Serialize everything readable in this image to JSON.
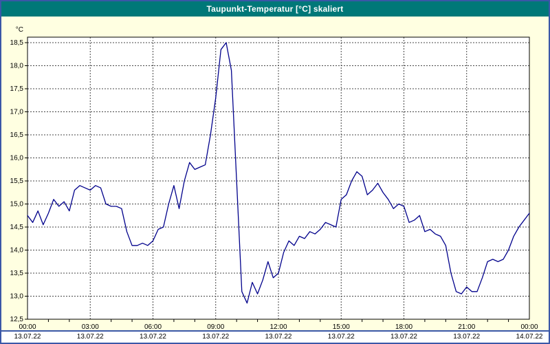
{
  "window": {
    "title": "Taupunkt-Temperatur [°C] skaliert"
  },
  "chart_data": {
    "type": "line",
    "title": "Taupunkt-Temperatur [°C] skaliert",
    "unit_label": "°C",
    "ylim": [
      12.5,
      18.5
    ],
    "ytick_step": 0.5,
    "ytick_values": [
      12.5,
      13.0,
      13.5,
      14.0,
      14.5,
      15.0,
      15.5,
      16.0,
      16.5,
      17.0,
      17.5,
      18.0,
      18.5
    ],
    "ytick_labels": [
      "12,5",
      "13,0",
      "13,5",
      "14,0",
      "14,5",
      "15,0",
      "15,5",
      "16,0",
      "16,5",
      "17,0",
      "17,5",
      "18,0",
      "18,5"
    ],
    "x_hours_range": [
      0,
      24
    ],
    "x_major_step_hours": 3,
    "x_minor_step_hours": 1,
    "x_tick_labels": [
      "00:00",
      "03:00",
      "06:00",
      "09:00",
      "12:00",
      "15:00",
      "18:00",
      "21:00",
      "00:00"
    ],
    "x_date_labels": [
      "13.07.22",
      "13.07.22",
      "13.07.22",
      "13.07.22",
      "13.07.22",
      "13.07.22",
      "13.07.22",
      "13.07.22",
      "14.07.22"
    ],
    "grid": "dashed",
    "legend_position": "none",
    "series": [
      {
        "name": "Taupunkt-Temperatur",
        "x_start_hour": 0,
        "x_step_hours": 0.25,
        "values": [
          14.75,
          14.6,
          14.85,
          14.55,
          14.8,
          15.1,
          14.95,
          15.05,
          14.85,
          15.3,
          15.4,
          15.35,
          15.3,
          15.4,
          15.35,
          15.0,
          14.95,
          14.95,
          14.9,
          14.4,
          14.1,
          14.1,
          14.15,
          14.1,
          14.2,
          14.45,
          14.5,
          15.0,
          15.4,
          14.9,
          15.5,
          15.9,
          15.75,
          15.8,
          15.85,
          16.5,
          17.3,
          18.35,
          18.5,
          17.9,
          15.5,
          13.1,
          12.85,
          13.3,
          13.05,
          13.35,
          13.75,
          13.4,
          13.5,
          13.95,
          14.2,
          14.1,
          14.3,
          14.25,
          14.4,
          14.35,
          14.45,
          14.6,
          14.55,
          14.5,
          15.1,
          15.2,
          15.5,
          15.7,
          15.6,
          15.2,
          15.3,
          15.45,
          15.25,
          15.1,
          14.9,
          15.0,
          14.95,
          14.6,
          14.65,
          14.75,
          14.4,
          14.45,
          14.35,
          14.3,
          14.1,
          13.5,
          13.1,
          13.05,
          13.2,
          13.1,
          13.1,
          13.4,
          13.75,
          13.8,
          13.75,
          13.8,
          14.0,
          14.3,
          14.5,
          14.65,
          14.8
        ]
      }
    ],
    "colors": {
      "page_bg": "#FFFFE1",
      "titlebar_bg": "#007878",
      "titlebar_fg": "#FFFFFF",
      "line_color": "#00008B",
      "grid_color": "#444444",
      "plot_border": "#000000",
      "plot_bg": "#FFFFFF",
      "outer_border": "#3A57A7",
      "date_strip_bg": "#FFFFFF"
    }
  }
}
